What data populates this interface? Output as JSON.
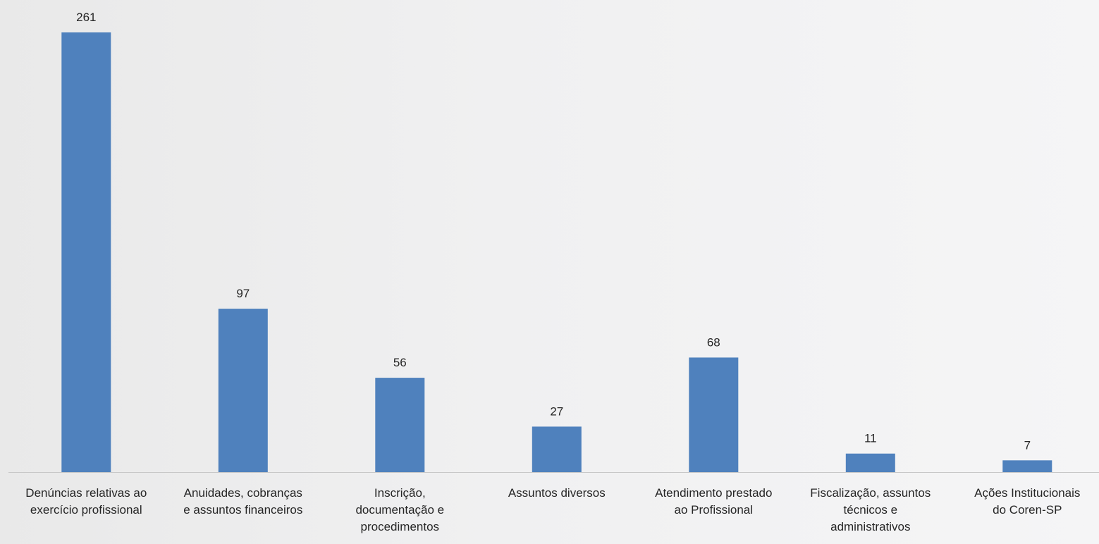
{
  "chart_data": {
    "type": "bar",
    "categories": [
      "Denúncias relativas ao\nexercício profissional",
      "Anuidades, cobranças\ne assuntos financeiros",
      "Inscrição,\ndocumentação e\nprocedimentos",
      "Assuntos diversos",
      "Atendimento prestado\nao Profissional",
      "Fiscalização, assuntos\ntécnicos e\nadministrativos",
      "Ações Institucionais\ndo Coren-SP"
    ],
    "values": [
      261,
      97,
      56,
      27,
      68,
      11,
      7
    ],
    "data_labels": [
      "261",
      "97",
      "56",
      "27",
      "68",
      "11",
      "7"
    ],
    "title": "",
    "xlabel": "",
    "ylabel": "",
    "ylim": [
      0,
      261
    ],
    "grid": false,
    "legend": "none",
    "colors": {
      "bar": "#4f81bd",
      "axis": "#c8c8c8",
      "text": "#262626"
    }
  }
}
